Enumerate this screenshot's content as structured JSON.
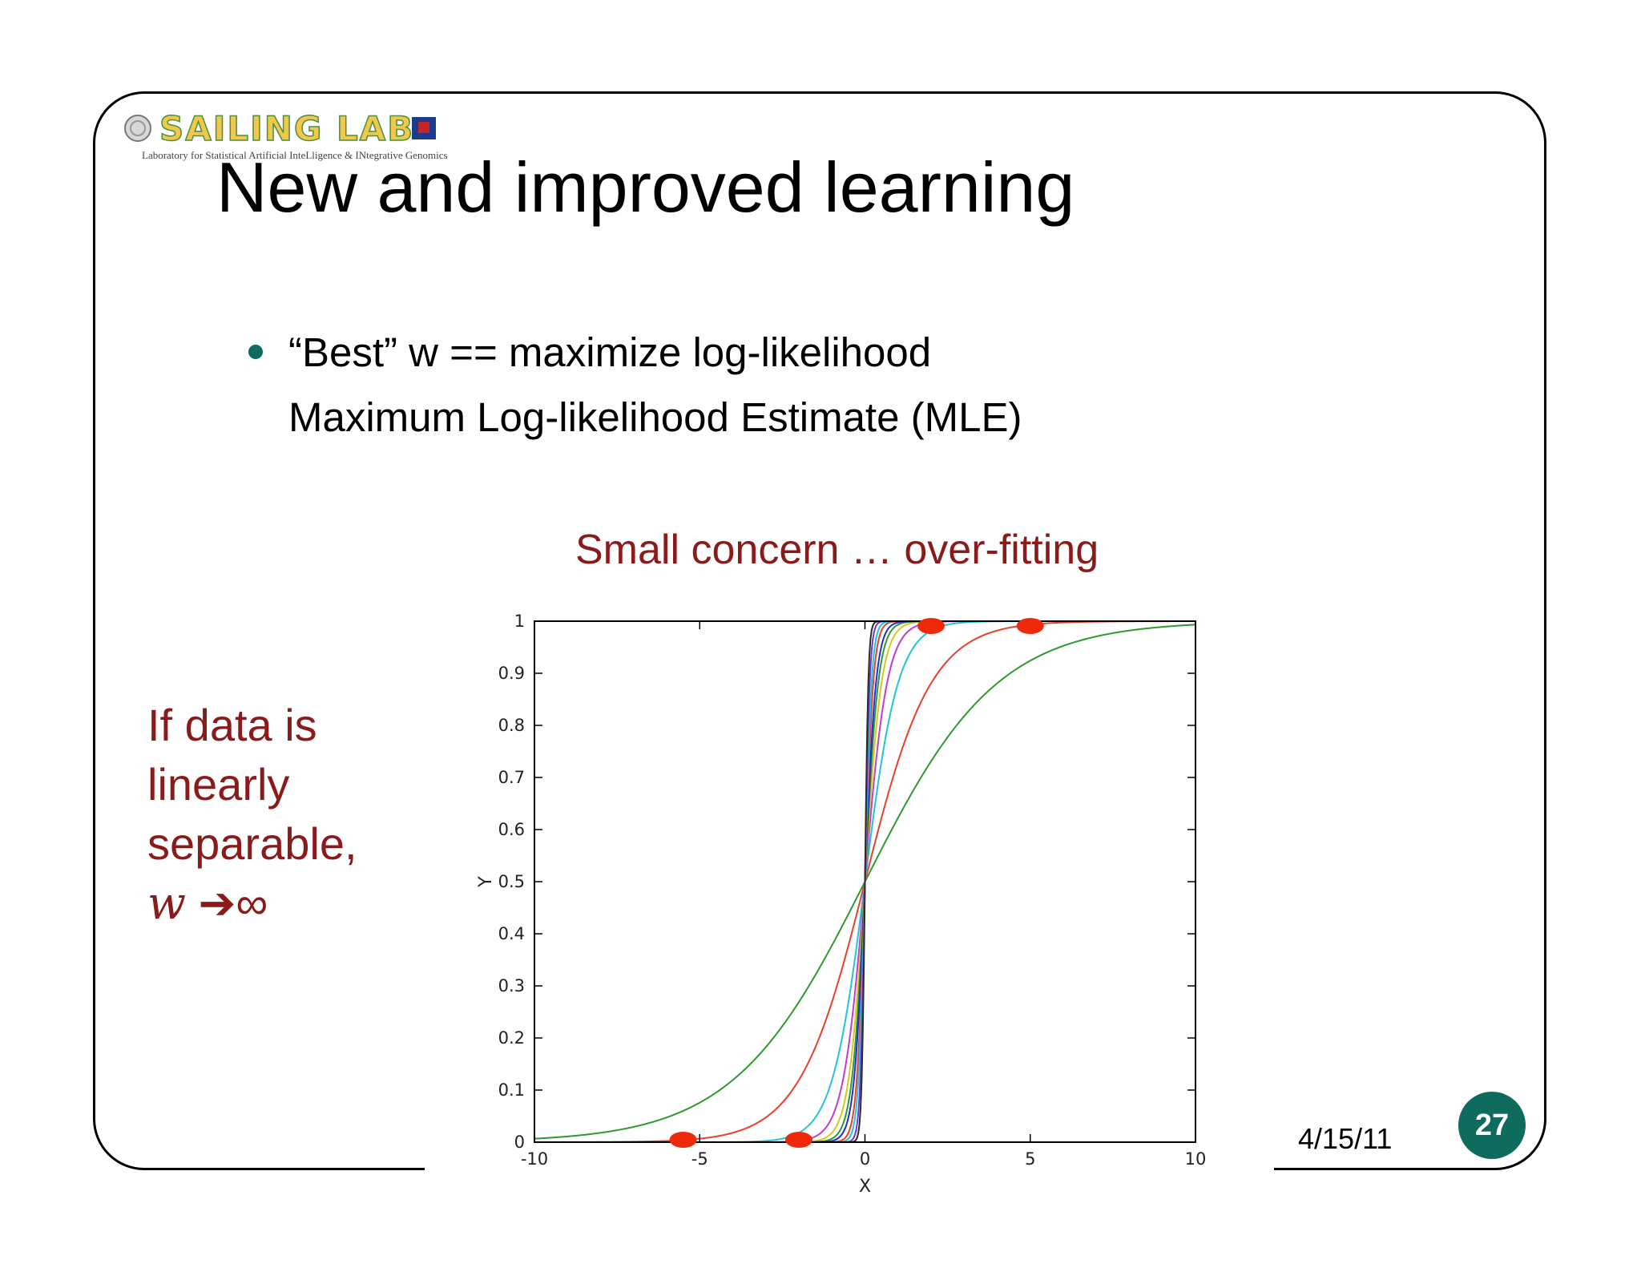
{
  "logo": {
    "name": "SAILING LAB",
    "subtitle": "Laboratory for Statistical Artificial InteLligence & INtegrative Genomics"
  },
  "slide": {
    "title": "New and improved learning",
    "bullet": {
      "line1": "“Best” w == maximize log-likelihood",
      "line2": "Maximum Log-likelihood Estimate (MLE)"
    },
    "concern": "Small concern … over-fitting",
    "side_note": {
      "line1": "If data is",
      "line2": "linearly",
      "line3": "separable,",
      "w": "w",
      "arrow": "➔",
      "infinity": "∞"
    },
    "date": "4/15/11",
    "page_number": "27"
  },
  "colors": {
    "accent_text": "#8b1a1a",
    "badge": "#0e6b5e",
    "data_points": "#ee2a0a"
  },
  "chart_data": {
    "type": "line",
    "xlabel": "X",
    "ylabel": "Y",
    "xlim": [
      -10,
      10
    ],
    "ylim": [
      0,
      1
    ],
    "x_ticks": [
      "-10",
      "-5",
      "0",
      "5",
      "10"
    ],
    "y_ticks": [
      "0",
      "0.1",
      "0.2",
      "0.3",
      "0.4",
      "0.5",
      "0.6",
      "0.7",
      "0.8",
      "0.9",
      "1"
    ],
    "grid": false,
    "series": [
      {
        "function": "sigmoid",
        "w": 0.5,
        "color": "#2e9a2e"
      },
      {
        "function": "sigmoid",
        "w": 1,
        "color": "#e8402a"
      },
      {
        "function": "sigmoid",
        "w": 2,
        "color": "#22c4d6"
      },
      {
        "function": "sigmoid",
        "w": 3,
        "color": "#c43ad6"
      },
      {
        "function": "sigmoid",
        "w": 4,
        "color": "#d6c61e"
      },
      {
        "function": "sigmoid",
        "w": 5,
        "color": "#2e9a2e"
      },
      {
        "function": "sigmoid",
        "w": 6,
        "color": "#1f2fd6"
      },
      {
        "function": "sigmoid",
        "w": 8,
        "color": "#e8402a"
      },
      {
        "function": "sigmoid",
        "w": 10,
        "color": "#22c4d6"
      },
      {
        "function": "sigmoid",
        "w": 14,
        "color": "#6a3ad6"
      },
      {
        "function": "sigmoid",
        "w": 20,
        "color": "#2b2b2b"
      }
    ],
    "points": [
      {
        "x": -5.5,
        "y": 0
      },
      {
        "x": -2,
        "y": 0
      },
      {
        "x": 2,
        "y": 1
      },
      {
        "x": 5,
        "y": 1
      }
    ]
  }
}
